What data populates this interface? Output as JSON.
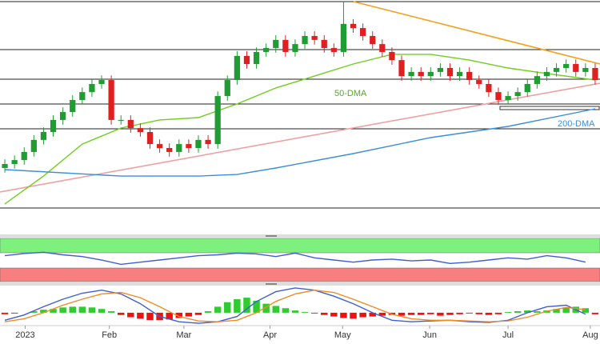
{
  "chart_data": [
    {
      "type": "candlestick",
      "xlim": [
        -0.5,
        61.5
      ],
      "ylim": [
        0,
        100
      ],
      "xticks": [
        {
          "value": 2.1,
          "label": "2023"
        },
        {
          "value": 10.8,
          "label": "Feb"
        },
        {
          "value": 18.5,
          "label": "Mar"
        },
        {
          "value": 27.4,
          "label": "Apr"
        },
        {
          "value": 34.9,
          "label": "May"
        },
        {
          "value": 43.9,
          "label": "Jun"
        },
        {
          "value": 52,
          "label": "Jul"
        },
        {
          "value": 60.5,
          "label": "Aug"
        }
      ],
      "up_color": "#1f9d32",
      "down_color": "#e02020",
      "open": [
        27.6,
        29.3,
        31,
        34.5,
        39.7,
        43.1,
        48.3,
        51.7,
        56.9,
        60.3,
        63.8,
        65.5,
        48.3,
        48.3,
        44.8,
        43.1,
        37.9,
        36.2,
        34.5,
        37.9,
        36.2,
        39.7,
        37.9,
        58.6,
        65.5,
        75.9,
        72.4,
        77.6,
        79.3,
        82.8,
        77.6,
        81,
        84.5,
        82.8,
        79.3,
        77.6,
        89.7,
        87.9,
        84.5,
        81,
        77.6,
        74.1,
        67.2,
        69,
        67.2,
        69,
        70.7,
        67.2,
        69,
        65.5,
        63.8,
        60.3,
        56.9,
        58.6,
        60.3,
        63.8,
        67.2,
        69,
        70.7,
        72.4,
        69,
        70.7
      ],
      "high": [
        31.3,
        33,
        36.5,
        41.7,
        45.1,
        50.3,
        53.7,
        58.9,
        62.3,
        65.8,
        67.5,
        67.5,
        50.3,
        50.3,
        46.8,
        45.1,
        39.9,
        38.2,
        39.9,
        39.9,
        41.7,
        41.7,
        60.6,
        67.5,
        77.9,
        77.9,
        79.6,
        81.3,
        84.8,
        84.8,
        83,
        86.5,
        86.5,
        84.8,
        81.3,
        99.3,
        91.7,
        89.9,
        86.5,
        83,
        79.6,
        76.1,
        71,
        71,
        71,
        72.7,
        72.7,
        71,
        71,
        67.5,
        65.8,
        62.3,
        60.6,
        62.3,
        65.8,
        69.2,
        71,
        72.7,
        74.4,
        74.4,
        72.7,
        72.7
      ],
      "low": [
        25.6,
        27.3,
        29,
        32.5,
        37.7,
        41.1,
        46.3,
        49.7,
        54.9,
        58.3,
        61.8,
        46.3,
        46.3,
        42.8,
        41.1,
        35.9,
        34.2,
        32.5,
        32.5,
        34.2,
        34.2,
        35.9,
        35.9,
        56.6,
        63.5,
        70.4,
        70.4,
        75.6,
        77.3,
        75.6,
        75.6,
        79,
        80.8,
        77.3,
        75.6,
        75.6,
        85.9,
        82.5,
        79,
        75.6,
        72.1,
        65.2,
        65.2,
        65.2,
        65.2,
        67,
        65.2,
        65.2,
        63.5,
        61.8,
        58.3,
        54.9,
        54.9,
        56.6,
        58.3,
        61.8,
        65.2,
        67,
        68.7,
        67,
        67,
        63.5
      ],
      "close": [
        29.3,
        31,
        34.5,
        39.7,
        43.1,
        48.3,
        51.7,
        56.9,
        60.3,
        63.8,
        65.5,
        48.3,
        48.3,
        44.8,
        43.1,
        37.9,
        36.2,
        34.5,
        37.9,
        36.2,
        39.7,
        37.9,
        58.6,
        65.5,
        75.9,
        72.4,
        77.6,
        79.3,
        82.8,
        77.6,
        81,
        84.5,
        82.8,
        79.3,
        77.6,
        89.7,
        87.9,
        84.5,
        81,
        77.6,
        74.1,
        67.2,
        69,
        67.2,
        69,
        70.7,
        67.2,
        69,
        65.5,
        63.8,
        60.3,
        56.9,
        58.6,
        60.3,
        63.8,
        67.2,
        69,
        70.7,
        72.4,
        69,
        70.7,
        65.5
      ],
      "series": [
        {
          "name": "50-DMA",
          "color": "#6fcf1f",
          "x": [
            0,
            4,
            8,
            12,
            16,
            20,
            24,
            28,
            32,
            36,
            40,
            44,
            48,
            52,
            56,
            61
          ],
          "values": [
            12.1,
            24.1,
            37.9,
            44.8,
            48.3,
            49.3,
            55.2,
            62.1,
            67.2,
            72.4,
            76.6,
            76.6,
            74.1,
            70.7,
            68.3,
            65.5
          ]
        },
        {
          "name": "200-DMA",
          "color": "#3a8fd8",
          "x": [
            0,
            12,
            20,
            24,
            28,
            36,
            44,
            52,
            61
          ],
          "values": [
            26.9,
            24.1,
            24.1,
            24.8,
            27.6,
            33.8,
            40.7,
            45.5,
            53.1
          ]
        }
      ]
    },
    {
      "type": "line",
      "xlim": [
        -0.5,
        61.5
      ],
      "ylim": [
        0,
        100
      ],
      "series": [
        {
          "color": "#3f5fd0",
          "x": [
            0,
            2,
            4,
            6,
            8,
            10,
            12,
            14,
            16,
            18,
            20,
            22,
            24,
            26,
            28,
            30,
            32,
            34,
            36,
            38,
            40,
            42,
            44,
            46,
            48,
            50,
            52,
            54,
            56,
            58,
            60
          ],
          "values": [
            60,
            65,
            68,
            62,
            58,
            50,
            40,
            45,
            50,
            55,
            60,
            62,
            66,
            64,
            58,
            66,
            55,
            50,
            45,
            50,
            52,
            48,
            50,
            42,
            45,
            50,
            55,
            52,
            60,
            55,
            45
          ]
        }
      ]
    },
    {
      "type": "macd",
      "xlim": [
        -0.5,
        61.5
      ],
      "ylim": [
        -15,
        35
      ],
      "up_color": "#2ecc2e",
      "down_color": "#ee1111",
      "histogram": [
        -2,
        -1,
        0,
        2,
        4,
        5,
        7,
        8,
        8,
        7,
        5,
        2,
        -3,
        -6,
        -8,
        -10,
        -10,
        -9,
        -7,
        -5,
        -3,
        2,
        8,
        14,
        18,
        20,
        16,
        12,
        9,
        6,
        3,
        1,
        -1,
        -3,
        -5,
        -7,
        -8,
        -6,
        -5,
        -4,
        -3,
        -4,
        -3,
        -3,
        -2,
        -4,
        -3,
        -2,
        -1,
        -2,
        -3,
        -2,
        1,
        2,
        3,
        2,
        3,
        5,
        7,
        8,
        6,
        -2
      ],
      "series": [
        {
          "color": "#3f5fd0",
          "x": [
            0,
            2,
            4,
            6,
            8,
            10,
            12,
            14,
            16,
            18,
            20,
            22,
            24,
            26,
            28,
            30,
            32,
            34,
            36,
            38,
            40,
            42,
            44,
            46,
            48,
            50,
            52,
            54,
            56,
            58,
            60
          ],
          "values": [
            -10,
            -3,
            8,
            18,
            26,
            30,
            25,
            12,
            -5,
            -12,
            -14,
            -12,
            -5,
            15,
            28,
            33,
            30,
            22,
            12,
            0,
            -10,
            -12,
            -11,
            -10,
            -12,
            -13,
            -10,
            0,
            8,
            10,
            -2
          ]
        },
        {
          "color": "#f08a24",
          "x": [
            0,
            2,
            4,
            6,
            8,
            10,
            12,
            14,
            16,
            18,
            20,
            22,
            24,
            26,
            28,
            30,
            32,
            34,
            36,
            38,
            40,
            42,
            44,
            46,
            48,
            50,
            52,
            54,
            56,
            58,
            60
          ],
          "values": [
            -12,
            -8,
            0,
            10,
            18,
            25,
            27,
            20,
            8,
            -5,
            -11,
            -12,
            -10,
            0,
            15,
            25,
            30,
            27,
            18,
            8,
            -2,
            -8,
            -10,
            -10,
            -11,
            -12,
            -11,
            -6,
            2,
            7,
            4
          ]
        }
      ]
    }
  ]
}
